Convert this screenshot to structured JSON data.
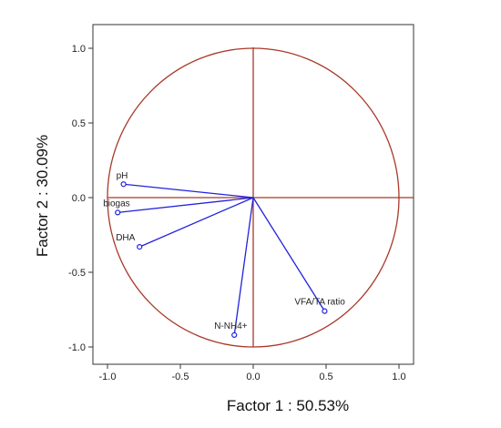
{
  "chart_data": {
    "type": "scatter",
    "title": "",
    "xlabel": "Factor 1 : 50.53%",
    "ylabel": "Factor 2 : 30.09%",
    "xlim": [
      -1.1,
      1.1
    ],
    "ylim": [
      -1.1,
      1.1
    ],
    "x_ticks": [
      -1.0,
      -0.5,
      0.0,
      0.5,
      1.0
    ],
    "y_ticks": [
      -1.0,
      -0.5,
      0.0,
      0.5,
      1.0
    ],
    "x_tick_labels": [
      "-1.0",
      "-0.5",
      "0.0",
      "0.5",
      "1.0"
    ],
    "y_tick_labels": [
      "-1.0",
      "-0.5",
      "0.0",
      "0.5",
      "1.0"
    ],
    "grid": false,
    "correlation_circle_radius": 1.0,
    "colors": {
      "vectors": "#2222dd",
      "circle": "#a83a2a",
      "axes": "#a83a2a",
      "frame": "#333333"
    },
    "points": [
      {
        "label": "pH",
        "x": -0.89,
        "y": 0.09
      },
      {
        "label": "biogas",
        "x": -0.93,
        "y": -0.1
      },
      {
        "label": "DHA",
        "x": -0.78,
        "y": -0.33
      },
      {
        "label": "N-NH4+",
        "x": -0.13,
        "y": -0.92
      },
      {
        "label": "VFA/TA ratio",
        "x": 0.49,
        "y": -0.76
      }
    ]
  }
}
